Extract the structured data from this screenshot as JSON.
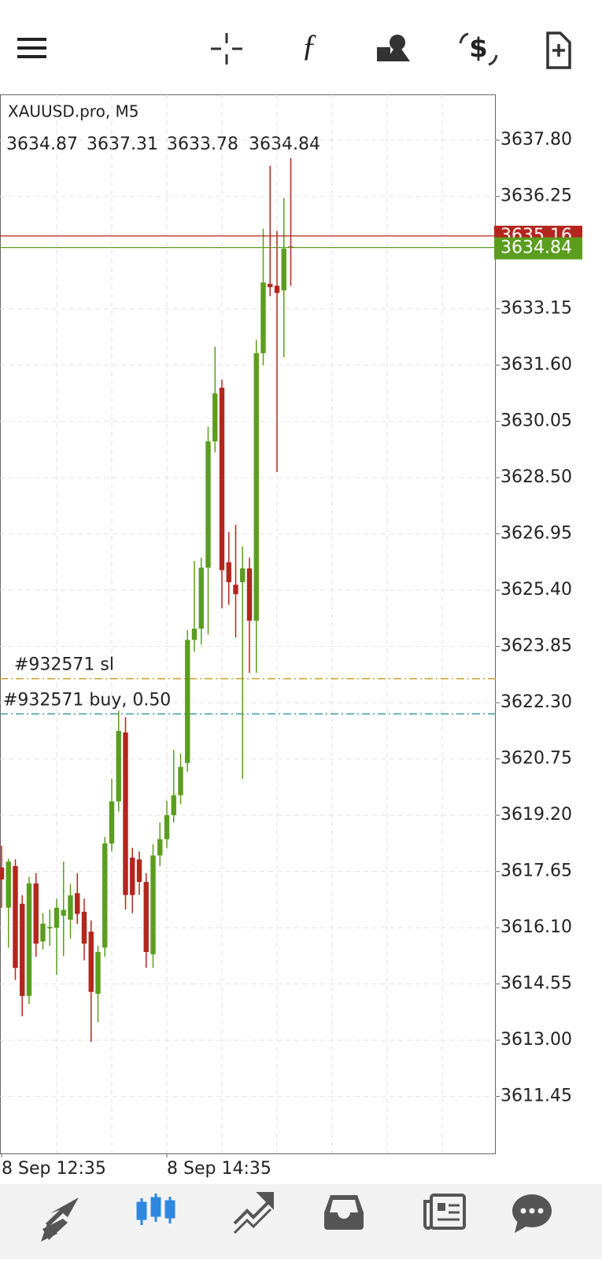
{
  "chart_data": {
    "type": "candlestick",
    "title": "XAUUSD.pro, M5",
    "categories": [
      "8 Sep 12:35",
      null,
      null,
      null,
      null,
      null,
      null,
      null,
      null,
      null,
      null,
      null,
      null,
      null,
      null,
      null,
      null,
      null,
      null,
      null,
      null,
      null,
      null,
      null,
      "8 Sep 14:35",
      null,
      null,
      null,
      null,
      null,
      null,
      null,
      null,
      null,
      null,
      null,
      null,
      null,
      null,
      null,
      null,
      null,
      null
    ],
    "open": [
      3617.76,
      3616.65,
      3617.8,
      3616.76,
      3614.22,
      3617.32,
      3615.72,
      3616.08,
      3616.1,
      3616.43,
      3616.32,
      3617.05,
      3616.54,
      3615.99,
      3614.28,
      3615.55,
      3618.42,
      3619.58,
      3621.48,
      3618.03,
      3617.98,
      3617.36,
      3615.37,
      3618.09,
      3618.54,
      3619.2,
      3619.75,
      3620.64,
      3624.03,
      3624.34,
      3626.02,
      3629.5,
      3630.98,
      3626.17,
      3625.55,
      3625.62,
      3626.0,
      3624.56,
      3631.93,
      3633.84,
      3633.79,
      3633.66,
      3634.87
    ],
    "high": [
      3618.36,
      3618.0,
      3617.98,
      3617.0,
      3617.5,
      3617.6,
      3616.5,
      3616.6,
      3616.9,
      3617.92,
      3617.3,
      3617.6,
      3616.9,
      3616.3,
      3615.6,
      3618.6,
      3620.2,
      3622.08,
      3621.9,
      3618.3,
      3618.2,
      3617.6,
      3618.4,
      3619.0,
      3619.6,
      3621.0,
      3620.9,
      3624.3,
      3626.2,
      3626.3,
      3629.9,
      3632.11,
      3631.2,
      3627.0,
      3627.2,
      3626.6,
      3626.3,
      3632.3,
      3635.36,
      3637.09,
      3635.3,
      3636.21,
      3637.31
    ],
    "low": [
      3616.65,
      3615.55,
      3614.66,
      3613.66,
      3614.0,
      3615.3,
      3615.5,
      3615.6,
      3614.8,
      3615.32,
      3615.8,
      3616.2,
      3615.2,
      3612.95,
      3613.5,
      3615.3,
      3618.2,
      3619.3,
      3616.6,
      3616.5,
      3617.0,
      3615.0,
      3615.0,
      3617.8,
      3618.3,
      3619.0,
      3619.5,
      3620.4,
      3623.7,
      3623.9,
      3624.18,
      3629.2,
      3624.9,
      3625.0,
      3624.1,
      3620.2,
      3623.12,
      3623.12,
      3631.6,
      3633.5,
      3628.65,
      3631.82,
      3633.78
    ],
    "close": [
      3617.43,
      3617.92,
      3614.99,
      3614.22,
      3617.32,
      3615.66,
      3616.21,
      3616.12,
      3616.65,
      3616.59,
      3616.99,
      3616.48,
      3615.66,
      3614.33,
      3615.43,
      3618.42,
      3619.58,
      3621.52,
      3617.0,
      3617.0,
      3617.36,
      3615.43,
      3618.09,
      3618.54,
      3619.2,
      3619.75,
      3620.53,
      3624.03,
      3624.34,
      3626.02,
      3629.5,
      3630.82,
      3625.95,
      3625.62,
      3625.29,
      3626.0,
      3624.56,
      3631.93,
      3633.88,
      3633.75,
      3633.59,
      3634.81,
      3634.84
    ],
    "up_color": "#5b9e1f",
    "down_color": "#b3261e",
    "ylim": [
      3609.88,
      3639.06
    ],
    "yticks": [
      {
        "value": 3637.8,
        "label": "3637.80"
      },
      3636.25,
      3633.15,
      {
        "value": 3631.6,
        "label": "3631.60"
      },
      3630.05,
      {
        "value": 3628.5,
        "label": "3628.50"
      },
      3626.95,
      {
        "value": 3625.4,
        "label": "3625.40"
      },
      3623.85,
      {
        "value": 3622.3,
        "label": "3622.30"
      },
      3620.75,
      {
        "value": 3619.2,
        "label": "3619.20"
      },
      3617.65,
      {
        "value": 3616.1,
        "label": "3616.10"
      },
      3614.55,
      {
        "value": 3613,
        "label": "3613.00"
      },
      3611.45
    ],
    "grid": true,
    "ask": {
      "value": 3635.16,
      "color": "#b3261e"
    },
    "bid": {
      "value": 3634.84,
      "color": "#5b9e1f"
    },
    "order_lines": [
      {
        "label": "#932571 sl",
        "value": 3622.96,
        "color": "#c9a227"
      },
      {
        "label": "#932571 buy, 0.50",
        "value": 3621.99,
        "color": "#3a9aa8"
      }
    ]
  }
}
